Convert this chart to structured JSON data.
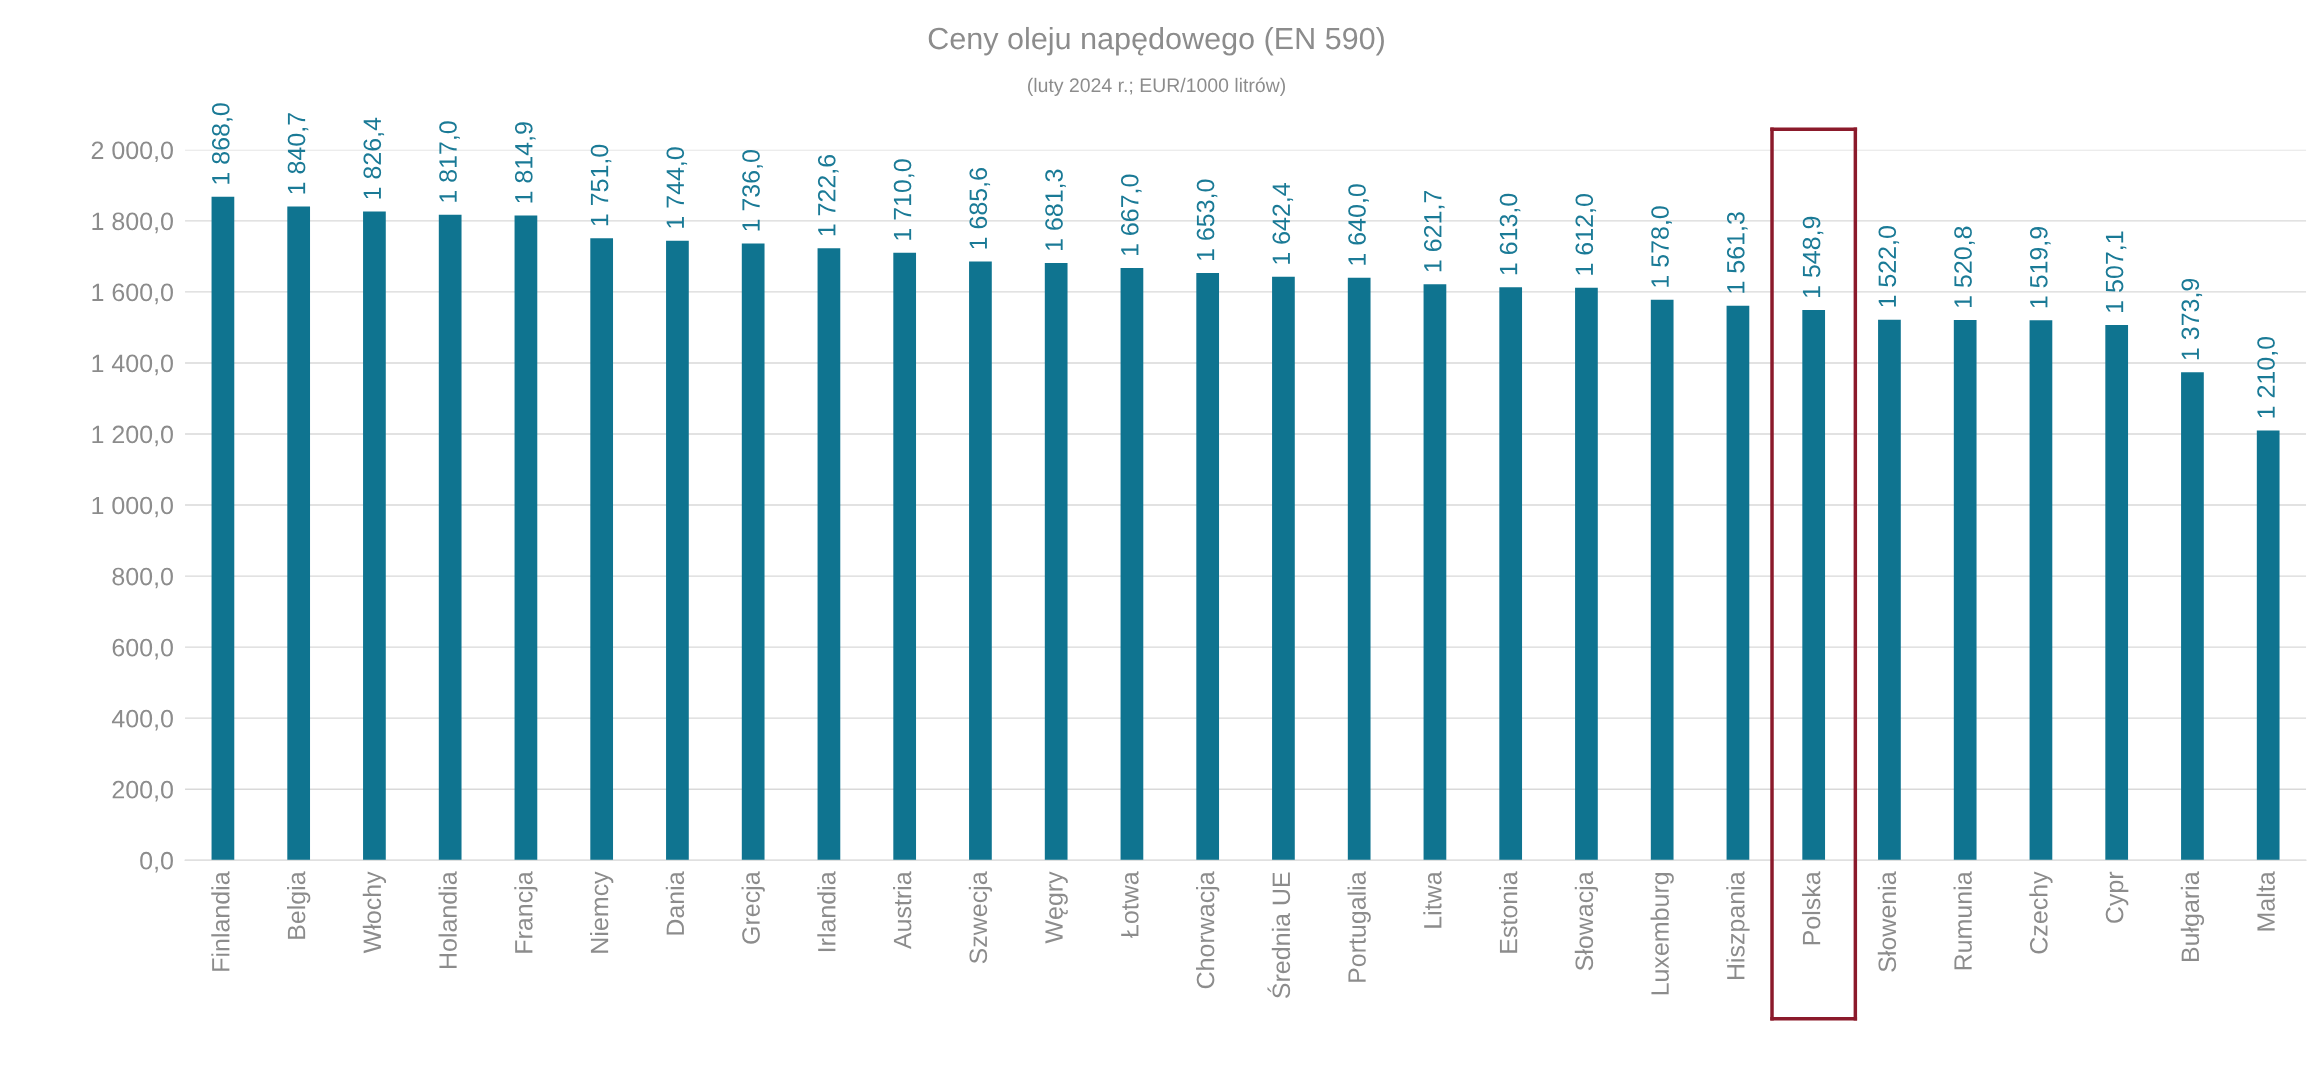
{
  "chart_data": {
    "type": "bar",
    "title": "Ceny oleju napędowego (EN 590)",
    "subtitle": "(luty 2024 r.; EUR/1000 litrów)",
    "categories": [
      "Finlandia",
      "Belgia",
      "Włochy",
      "Holandia",
      "Francja",
      "Niemcy",
      "Dania",
      "Grecja",
      "Irlandia",
      "Austria",
      "Szwecja",
      "Węgry",
      "Łotwa",
      "Chorwacja",
      "Średnia UE",
      "Portugalia",
      "Litwa",
      "Estonia",
      "Słowacja",
      "Luxemburg",
      "Hiszpania",
      "Polska",
      "Słowenia",
      "Rumunia",
      "Czechy",
      "Cypr",
      "Bułgaria",
      "Malta"
    ],
    "values": [
      1868.0,
      1840.7,
      1826.4,
      1817.0,
      1814.9,
      1751.0,
      1744.0,
      1736.0,
      1722.6,
      1710.0,
      1685.6,
      1681.3,
      1667.0,
      1653.0,
      1642.4,
      1640.0,
      1621.7,
      1613.0,
      1612.0,
      1578.0,
      1561.3,
      1548.9,
      1522.0,
      1520.8,
      1519.9,
      1507.1,
      1373.9,
      1210.0
    ],
    "color": "#0f7490",
    "value_labels": [
      "1 868,0",
      "1 840,7",
      "1 826,4",
      "1 817,0",
      "1 814,9",
      "1 751,0",
      "1 744,0",
      "1 736,0",
      "1 722,6",
      "1 710,0",
      "1 685,6",
      "1 681,3",
      "1 667,0",
      "1 653,0",
      "1 642,4",
      "1 640,0",
      "1 621,7",
      "1 613,0",
      "1 612,0",
      "1 578,0",
      "1 561,3",
      "1 548,9",
      "1 522,0",
      "1 520,8",
      "1 519,9",
      "1 507,1",
      "1 373,9",
      "1 210,0"
    ],
    "ylim": [
      0,
      2000
    ],
    "yticks": [
      {
        "value": 0,
        "label": "0,0"
      },
      {
        "value": 200,
        "label": "200,0"
      },
      {
        "value": 400,
        "label": "400,0"
      },
      {
        "value": 600,
        "label": "600,0"
      },
      {
        "value": 800,
        "label": "800,0"
      },
      {
        "value": 1000,
        "label": "1 000,0"
      },
      {
        "value": 1200,
        "label": "1 200,0"
      },
      {
        "value": 1400,
        "label": "1 400,0"
      },
      {
        "value": 1600,
        "label": "1 600,0"
      },
      {
        "value": 1800,
        "label": "1 800,0"
      },
      {
        "value": 2000,
        "label": "2 000,0"
      }
    ],
    "grid": "y"
  }
}
